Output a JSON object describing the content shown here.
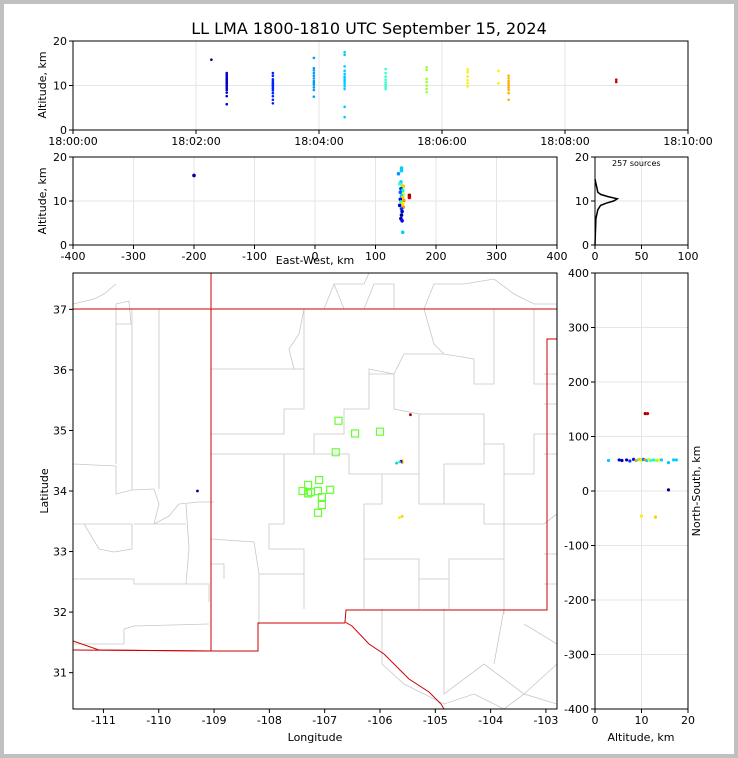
{
  "title": "LL LMA 1800-1810 UTC September 15, 2024",
  "colors": {
    "frame": "#c0c0c0",
    "state_lines": "#cc0000",
    "county_lines": "#c8c8c8",
    "network_stations": "#66ff33",
    "grid": "#e6e6e6"
  },
  "chart_data": [
    {
      "id": "time_height",
      "type": "scatter",
      "ylabel": "Altitude, km",
      "xlabel": "",
      "x_ticks": [
        "18:00:00",
        "18:02:00",
        "18:04:00",
        "18:06:00",
        "18:08:00",
        "18:10:00"
      ],
      "xlim": [
        "18:00:00",
        "18:10:00"
      ],
      "ylim": [
        0,
        20
      ],
      "y_ticks": [
        0,
        10,
        20
      ],
      "grid": true,
      "clusters": [
        {
          "t": "18:02:15",
          "alts": [
            15.8
          ]
        },
        {
          "t": "18:02:30",
          "alts": [
            5.8,
            7.6,
            8.4,
            9.0,
            9.4,
            9.8,
            10.1,
            10.4,
            10.7,
            11.0,
            11.3,
            11.6,
            12.0,
            12.4,
            12.8
          ]
        },
        {
          "t": "18:03:15",
          "alts": [
            6.0,
            6.8,
            7.6,
            8.3,
            8.9,
            9.3,
            9.7,
            10.0,
            10.3,
            10.6,
            11.0,
            11.4,
            12.2,
            12.8
          ]
        },
        {
          "t": "18:03:55",
          "alts": [
            7.5,
            9.0,
            9.6,
            10.2,
            10.6,
            11.0,
            11.6,
            12.2,
            12.8,
            13.4,
            13.9,
            16.2
          ]
        },
        {
          "t": "18:04:25",
          "alts": [
            2.9,
            5.2,
            9.2,
            9.8,
            10.3,
            10.8,
            11.2,
            11.6,
            12.0,
            12.6,
            13.3,
            14.3,
            16.9,
            17.5
          ]
        },
        {
          "t": "18:05:05",
          "alts": [
            9.2,
            9.7,
            10.2,
            10.7,
            11.3,
            12.0,
            12.8,
            13.7
          ]
        },
        {
          "t": "18:05:45",
          "alts": [
            8.5,
            9.2,
            10.0,
            10.8,
            11.5,
            13.5,
            14.1
          ]
        },
        {
          "t": "18:06:25",
          "alts": [
            9.8,
            10.5,
            11.2,
            12.0,
            13.0,
            13.6
          ]
        },
        {
          "t": "18:06:55",
          "alts": [
            10.5,
            13.3
          ]
        },
        {
          "t": "18:07:05",
          "alts": [
            6.8,
            8.3,
            9.0,
            9.5,
            10.0,
            10.5,
            11.0,
            11.6,
            12.2
          ]
        },
        {
          "t": "18:08:50",
          "alts": [
            10.8,
            11.3
          ]
        }
      ]
    },
    {
      "id": "ew_height",
      "type": "scatter",
      "xlabel": "East-West, km",
      "ylabel": "Altitude, km",
      "xlim": [
        -400,
        400
      ],
      "x_ticks": [
        -400,
        -300,
        -200,
        -100,
        0,
        100,
        200,
        300,
        400
      ],
      "ylim": [
        0,
        20
      ],
      "y_ticks": [
        0,
        10,
        20
      ],
      "grid": true,
      "points": [
        [
          -200,
          15.8,
          "#0000a0"
        ],
        [
          143,
          17.5,
          "#00ccff"
        ],
        [
          143,
          16.9,
          "#00ccff"
        ],
        [
          138,
          16.2,
          "#0099ff"
        ],
        [
          142,
          14.3,
          "#00ccff"
        ],
        [
          140,
          13.9,
          "#33ffcc"
        ],
        [
          144,
          13.5,
          "#99ff33"
        ],
        [
          146,
          13.3,
          "#ffcc00"
        ],
        [
          142,
          12.8,
          "#0033ff"
        ],
        [
          145,
          12.4,
          "#00ffcc"
        ],
        [
          141,
          12.0,
          "#0066ff"
        ],
        [
          146,
          11.6,
          "#ccff33"
        ],
        [
          143,
          11.2,
          "#00ccff"
        ],
        [
          145,
          10.8,
          "#ffcc00"
        ],
        [
          141,
          10.4,
          "#0000ff"
        ],
        [
          147,
          10.1,
          "#ff9900"
        ],
        [
          142,
          9.8,
          "#33ff99"
        ],
        [
          145,
          9.4,
          "#ffee00"
        ],
        [
          140,
          9.0,
          "#0000cc"
        ],
        [
          146,
          8.6,
          "#ff9900"
        ],
        [
          143,
          8.2,
          "#0033ff"
        ],
        [
          144,
          7.6,
          "#0000cc"
        ],
        [
          143,
          6.8,
          "#0000aa"
        ],
        [
          142,
          6.0,
          "#0000aa"
        ],
        [
          144,
          5.5,
          "#0000ff"
        ],
        [
          145,
          2.9,
          "#00ccff"
        ],
        [
          156,
          11.3,
          "#990000"
        ],
        [
          156,
          10.8,
          "#cc0000"
        ]
      ]
    },
    {
      "id": "altitude_histogram",
      "type": "line",
      "annotation": "257 sources",
      "xlim": [
        0,
        100
      ],
      "x_ticks": [
        0,
        50,
        100
      ],
      "ylim": [
        0,
        20
      ],
      "y_ticks": [
        0,
        10,
        20
      ],
      "grid": true,
      "profile": [
        [
          0,
          0
        ],
        [
          1,
          6
        ],
        [
          3,
          8
        ],
        [
          6,
          9
        ],
        [
          12,
          9.5
        ],
        [
          20,
          10
        ],
        [
          24,
          10.5
        ],
        [
          14,
          11
        ],
        [
          6,
          11.5
        ],
        [
          3,
          12
        ],
        [
          2,
          13
        ],
        [
          1,
          14
        ],
        [
          0,
          15
        ]
      ]
    },
    {
      "id": "plan_view",
      "type": "scatter",
      "xlabel": "Longitude",
      "ylabel": "Latitude",
      "xlim": [
        -111.55,
        -102.8
      ],
      "ylim": [
        30.4,
        37.6
      ],
      "x_ticks": [
        -111,
        -110,
        -109,
        -108,
        -107,
        -106,
        -105,
        -104,
        -103
      ],
      "y_ticks": [
        31,
        32,
        33,
        34,
        35,
        36,
        37
      ],
      "stations": [
        [
          -106.75,
          35.16
        ],
        [
          -106.45,
          34.95
        ],
        [
          -106.0,
          34.98
        ],
        [
          -106.8,
          34.64
        ],
        [
          -107.3,
          34.1
        ],
        [
          -107.1,
          34.18
        ],
        [
          -107.4,
          34.0
        ],
        [
          -107.25,
          33.98
        ],
        [
          -107.12,
          34.0
        ],
        [
          -107.05,
          33.9
        ],
        [
          -106.9,
          34.02
        ],
        [
          -107.3,
          33.96
        ],
        [
          -107.05,
          33.77
        ],
        [
          -107.12,
          33.64
        ]
      ],
      "sources": [
        [
          -109.3,
          34.0,
          "#0000a0"
        ],
        [
          -105.7,
          34.46,
          "#00ccff"
        ],
        [
          -105.6,
          34.5,
          "#ffcc00"
        ],
        [
          -105.6,
          34.47,
          "#ff9900"
        ],
        [
          -105.62,
          34.49,
          "#0000ff"
        ],
        [
          -105.65,
          34.48,
          "#33ff99"
        ],
        [
          -105.45,
          35.26,
          "#990000"
        ],
        [
          -105.65,
          33.56,
          "#ffee00"
        ],
        [
          -105.6,
          33.58,
          "#ffcc00"
        ]
      ]
    },
    {
      "id": "height_ns",
      "type": "scatter",
      "xlabel": "Altitude, km",
      "ylabel": "North-South, km",
      "xlim": [
        0,
        20
      ],
      "x_ticks": [
        0,
        10,
        20
      ],
      "ylim": [
        -400,
        400
      ],
      "y_ticks": [
        -400,
        -300,
        -200,
        -100,
        0,
        100,
        200,
        300,
        400
      ],
      "grid": true,
      "points": [
        [
          2.9,
          56,
          "#00ccff"
        ],
        [
          5.2,
          57,
          "#0000cc"
        ],
        [
          5.8,
          56,
          "#0000aa"
        ],
        [
          6.8,
          57,
          "#0000aa"
        ],
        [
          7.5,
          55,
          "#0033ff"
        ],
        [
          8.3,
          58,
          "#0000ff"
        ],
        [
          8.8,
          56,
          "#ff9900"
        ],
        [
          9.2,
          57,
          "#33ff99"
        ],
        [
          9.6,
          58,
          "#ffcc00"
        ],
        [
          10.0,
          56,
          "#ccff33"
        ],
        [
          10.4,
          58,
          "#0066ff"
        ],
        [
          10.8,
          57,
          "#ff9900"
        ],
        [
          11.2,
          56,
          "#00ccff"
        ],
        [
          11.6,
          58,
          "#ffee00"
        ],
        [
          12.0,
          56,
          "#33ffcc"
        ],
        [
          12.6,
          57,
          "#00ffcc"
        ],
        [
          13.3,
          56,
          "#99ff33"
        ],
        [
          13.9,
          57,
          "#ffee00"
        ],
        [
          14.3,
          57,
          "#00ccff"
        ],
        [
          15.8,
          52,
          "#00ccff"
        ],
        [
          16.9,
          57,
          "#00ccff"
        ],
        [
          17.5,
          57,
          "#00ccff"
        ],
        [
          15.8,
          2,
          "#0000a0"
        ],
        [
          10.8,
          142,
          "#990000"
        ],
        [
          11.3,
          142,
          "#cc0000"
        ],
        [
          10.0,
          -46,
          "#ffee00"
        ],
        [
          13.0,
          -48,
          "#ffcc00"
        ]
      ]
    }
  ]
}
